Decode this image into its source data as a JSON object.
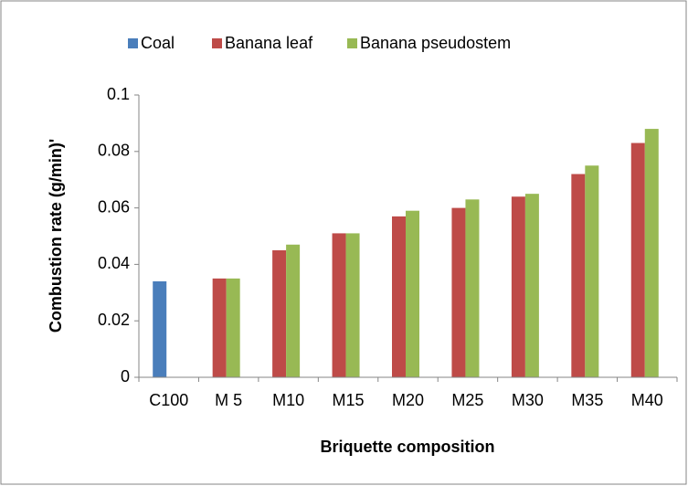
{
  "chart_data": {
    "type": "bar",
    "x_label": "Briquette composition",
    "y_label": "Combustion rate (g/min)'",
    "categories": [
      "C100",
      "M 5",
      "M10",
      "M15",
      "M20",
      "M25",
      "M30",
      "M35",
      "M40"
    ],
    "series": [
      {
        "name": "Coal",
        "color": "#4a7ebb",
        "values": [
          0.034,
          null,
          null,
          null,
          null,
          null,
          null,
          null,
          null
        ]
      },
      {
        "name": "Banana leaf",
        "color": "#be4b48",
        "values": [
          null,
          0.035,
          0.045,
          0.051,
          0.057,
          0.06,
          0.064,
          0.072,
          0.083
        ]
      },
      {
        "name": "Banana pseudostem",
        "color": "#98b954",
        "values": [
          null,
          0.035,
          0.047,
          0.051,
          0.059,
          0.063,
          0.065,
          0.075,
          0.088
        ]
      }
    ],
    "ylim": [
      0,
      0.1
    ],
    "yticks": [
      0,
      0.02,
      0.04,
      0.06,
      0.08,
      0.1
    ],
    "legend": "top",
    "grid": false
  }
}
